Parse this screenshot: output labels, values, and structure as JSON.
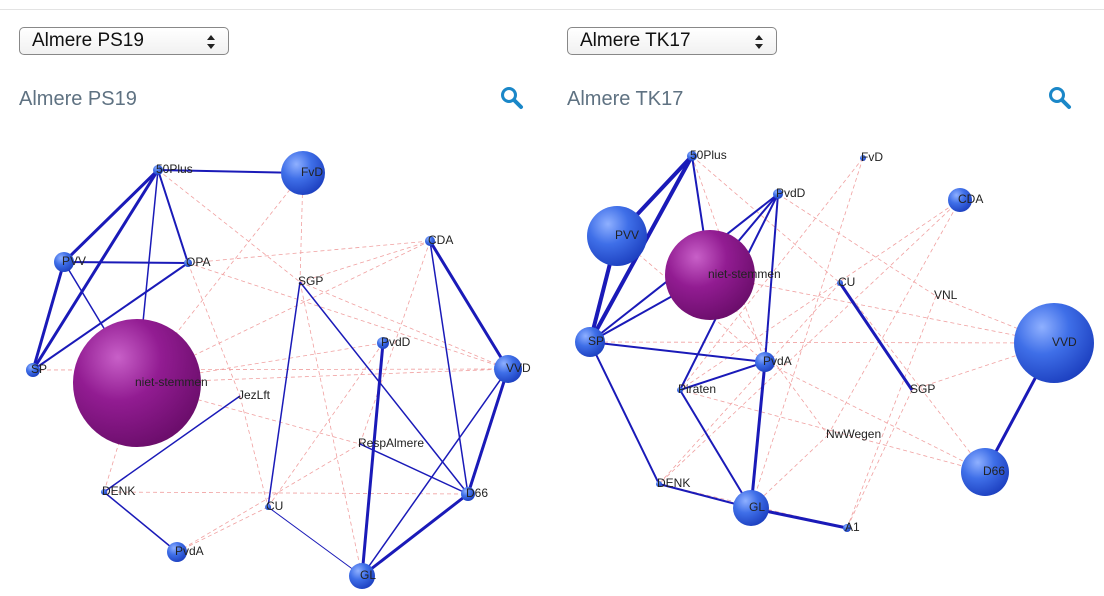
{
  "panels": [
    {
      "select": "Almere PS19",
      "title": "Almere PS19",
      "nodes": [
        "50Plus",
        "FvD",
        "PVV",
        "OPA",
        "SGP",
        "CDA",
        "PvdD",
        "VVD",
        "SP",
        "niet-stemmen",
        "JezLft",
        "RespAlmere",
        "DENK",
        "D66",
        "CU",
        "PvdA",
        "GL"
      ]
    },
    {
      "select": "Almere TK17",
      "title": "Almere TK17",
      "nodes": [
        "50Plus",
        "FvD",
        "PvdD",
        "CDA",
        "PVV",
        "niet-stemmen",
        "CU",
        "VNL",
        "SP",
        "VVD",
        "PvdA",
        "SGP",
        "Piraten",
        "NwWegen",
        "D66",
        "DENK",
        "GL",
        "A1"
      ]
    }
  ]
}
